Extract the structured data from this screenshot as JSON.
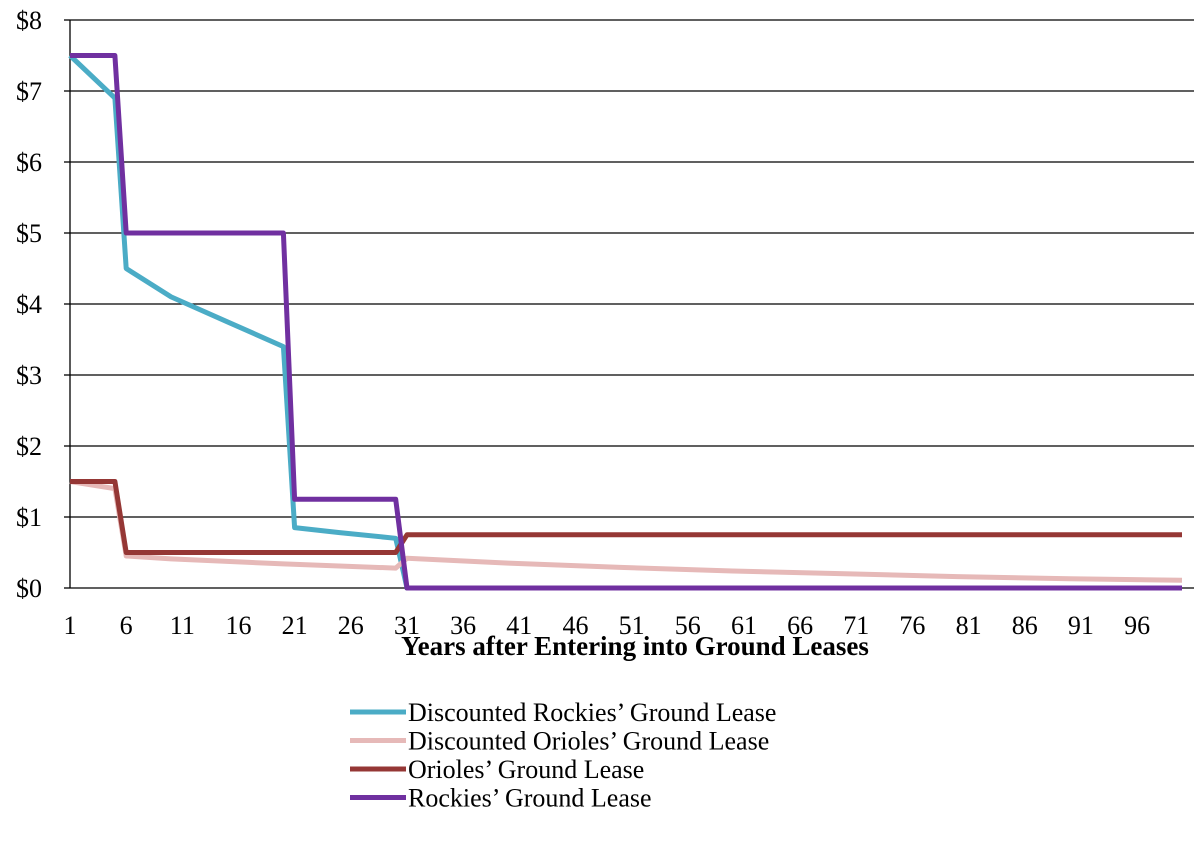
{
  "chart_data": {
    "type": "line",
    "title": "",
    "xlabel": "Years after Entering into Ground Leases",
    "ylabel": "",
    "x_range": [
      1,
      100
    ],
    "x_ticks": [
      "1",
      "6",
      "11",
      "16",
      "21",
      "26",
      "31",
      "36",
      "41",
      "46",
      "51",
      "56",
      "61",
      "66",
      "71",
      "76",
      "81",
      "86",
      "91",
      "96"
    ],
    "x_tick_values": [
      1,
      6,
      11,
      16,
      21,
      26,
      31,
      36,
      41,
      46,
      51,
      56,
      61,
      66,
      71,
      76,
      81,
      86,
      91,
      96
    ],
    "ylim": [
      0,
      8
    ],
    "y_ticks": [
      "$0",
      "$1",
      "$2",
      "$3",
      "$4",
      "$5",
      "$6",
      "$7",
      "$8"
    ],
    "y_tick_values": [
      0,
      1,
      2,
      3,
      4,
      5,
      6,
      7,
      8
    ],
    "grid": "horizontal",
    "legend_position": "bottom",
    "series": [
      {
        "name": "Discounted Rockies’ Ground Lease",
        "color": "#4bacc6",
        "x": [
          1,
          5,
          6,
          10,
          15,
          20,
          21,
          25,
          30,
          31,
          50,
          100
        ],
        "values": [
          7.5,
          6.9,
          4.5,
          4.1,
          3.75,
          3.4,
          0.85,
          0.78,
          0.7,
          0,
          0,
          0
        ]
      },
      {
        "name": "Discounted Orioles’ Ground Lease",
        "color": "#e6b9b8",
        "x": [
          1,
          5,
          6,
          10,
          20,
          30,
          31,
          40,
          50,
          60,
          70,
          80,
          90,
          100
        ],
        "values": [
          1.5,
          1.4,
          0.45,
          0.41,
          0.34,
          0.28,
          0.42,
          0.35,
          0.29,
          0.24,
          0.2,
          0.16,
          0.13,
          0.11
        ]
      },
      {
        "name": "Orioles’ Ground Lease",
        "color": "#953735",
        "x": [
          1,
          5,
          6,
          30,
          31,
          100
        ],
        "values": [
          1.5,
          1.5,
          0.5,
          0.5,
          0.75,
          0.75
        ]
      },
      {
        "name": "Rockies’ Ground Lease",
        "color": "#7030a0",
        "x": [
          1,
          5,
          6,
          20,
          21,
          30,
          31,
          100
        ],
        "values": [
          7.5,
          7.5,
          5.0,
          5.0,
          1.25,
          1.25,
          0,
          0
        ]
      }
    ]
  }
}
